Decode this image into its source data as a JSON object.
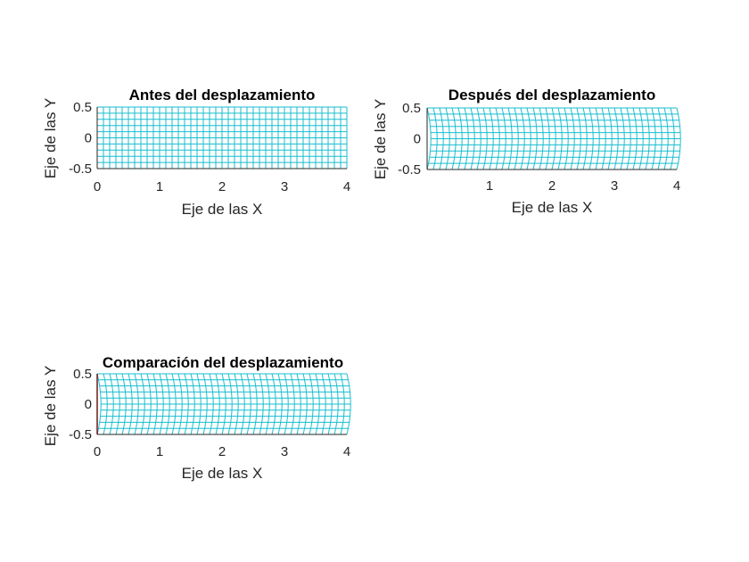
{
  "figure": {
    "background": "#ffffff",
    "mesh_color": "#17becf",
    "highlight_color": "#ff0000",
    "axis_color": "#262626"
  },
  "chart_data": [
    {
      "type": "line",
      "title": "Antes del desplazamiento",
      "xlabel": "Eje de las X",
      "ylabel": "Eje de las Y",
      "xlim": [
        0,
        4
      ],
      "ylim": [
        -0.5,
        0.5
      ],
      "xticks": [
        "0",
        "1",
        "2",
        "3",
        "4"
      ],
      "yticks": [
        "-0.5",
        "0",
        "0.5"
      ],
      "mesh": {
        "nx": 40,
        "ny": 10,
        "x": [
          0,
          4
        ],
        "y": [
          -0.5,
          0.5
        ],
        "max_x_displacement": 0
      }
    },
    {
      "type": "line",
      "title": "Después del desplazamiento",
      "xlabel": "Eje de las X",
      "ylabel": "Eje de las Y",
      "xlim": [
        0,
        4
      ],
      "ylim": [
        -0.5,
        0.5
      ],
      "xticks": [
        "1",
        "2",
        "3",
        "4"
      ],
      "yticks": [
        "-0.5",
        "0",
        "0.5"
      ],
      "mesh": {
        "nx": 40,
        "ny": 10,
        "x": [
          0,
          4
        ],
        "y": [
          -0.5,
          0.5
        ],
        "max_x_displacement": 0.06
      }
    },
    {
      "type": "line",
      "title": "Comparación del desplazamiento",
      "xlabel": "Eje de las X",
      "ylabel": "Eje de las Y",
      "xlim": [
        0,
        4
      ],
      "ylim": [
        -0.5,
        0.5
      ],
      "xticks": [
        "0",
        "1",
        "2",
        "3",
        "4"
      ],
      "yticks": [
        "-0.5",
        "0",
        "0.5"
      ],
      "mesh": {
        "nx": 40,
        "ny": 10,
        "x": [
          0,
          4
        ],
        "y": [
          -0.5,
          0.5
        ],
        "max_x_displacement": 0.06
      },
      "highlight_series": {
        "x": [
          0,
          0
        ],
        "y": [
          -0.5,
          0.5
        ]
      }
    }
  ]
}
